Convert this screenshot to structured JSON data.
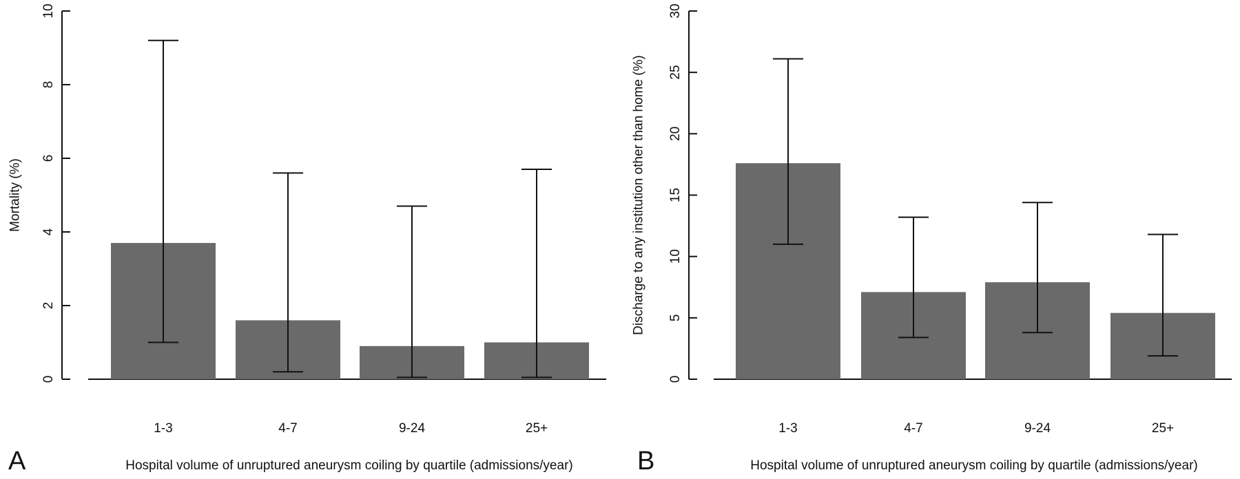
{
  "chart_data": [
    {
      "type": "bar",
      "panel": "A",
      "categories": [
        "1-3",
        "4-7",
        "9-24",
        "25+"
      ],
      "values": [
        3.7,
        1.6,
        0.9,
        1.0
      ],
      "error_low": [
        1.0,
        0.2,
        0.05,
        0.05
      ],
      "error_high": [
        9.2,
        5.6,
        4.7,
        5.7
      ],
      "ylim": [
        0,
        10
      ],
      "yticks": [
        0,
        2,
        4,
        6,
        8,
        10
      ],
      "ylabel": "Mortality (%)",
      "xlabel": "Hospital volume of unruptured aneurysm coiling by quartile (admissions/year)",
      "color": "#6a6a6a"
    },
    {
      "type": "bar",
      "panel": "B",
      "categories": [
        "1-3",
        "4-7",
        "9-24",
        "25+"
      ],
      "values": [
        17.6,
        7.1,
        7.9,
        5.4
      ],
      "error_low": [
        11.0,
        3.4,
        3.8,
        1.9
      ],
      "error_high": [
        26.1,
        13.2,
        14.4,
        11.8
      ],
      "ylim": [
        0,
        30
      ],
      "yticks": [
        0,
        5,
        10,
        15,
        20,
        25,
        30
      ],
      "ylabel": "Discharge to any institution other than home (%)",
      "xlabel": "Hospital volume of unruptured aneurysm coiling by quartile (admissions/year)",
      "color": "#6a6a6a"
    }
  ]
}
